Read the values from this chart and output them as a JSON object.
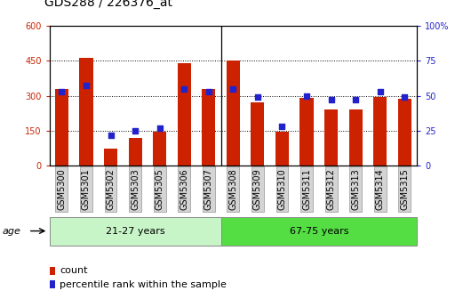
{
  "title": "GDS288 / 226376_at",
  "categories": [
    "GSM5300",
    "GSM5301",
    "GSM5302",
    "GSM5303",
    "GSM5305",
    "GSM5306",
    "GSM5307",
    "GSM5308",
    "GSM5309",
    "GSM5310",
    "GSM5311",
    "GSM5312",
    "GSM5313",
    "GSM5314",
    "GSM5315"
  ],
  "counts": [
    330,
    460,
    75,
    120,
    145,
    440,
    330,
    450,
    270,
    145,
    290,
    240,
    240,
    295,
    285
  ],
  "percentiles": [
    53,
    57,
    22,
    25,
    27,
    55,
    53,
    55,
    49,
    28,
    50,
    47,
    47,
    53,
    49
  ],
  "group1_label": "21-27 years",
  "group2_label": "67-75 years",
  "group1_count": 7,
  "group2_count": 8,
  "ylim_left": [
    0,
    600
  ],
  "ylim_right": [
    0,
    100
  ],
  "yticks_left": [
    0,
    150,
    300,
    450,
    600
  ],
  "yticks_right": [
    0,
    25,
    50,
    75,
    100
  ],
  "bar_color": "#cc2200",
  "dot_color": "#2222cc",
  "legend_count": "count",
  "legend_pct": "percentile rank within the sample",
  "group1_color": "#c8f5c8",
  "group2_color": "#55dd44",
  "bar_width": 0.55,
  "xtick_bg": "#d4d4d4",
  "title_fontsize": 10,
  "tick_fontsize": 7,
  "label_fontsize": 8
}
